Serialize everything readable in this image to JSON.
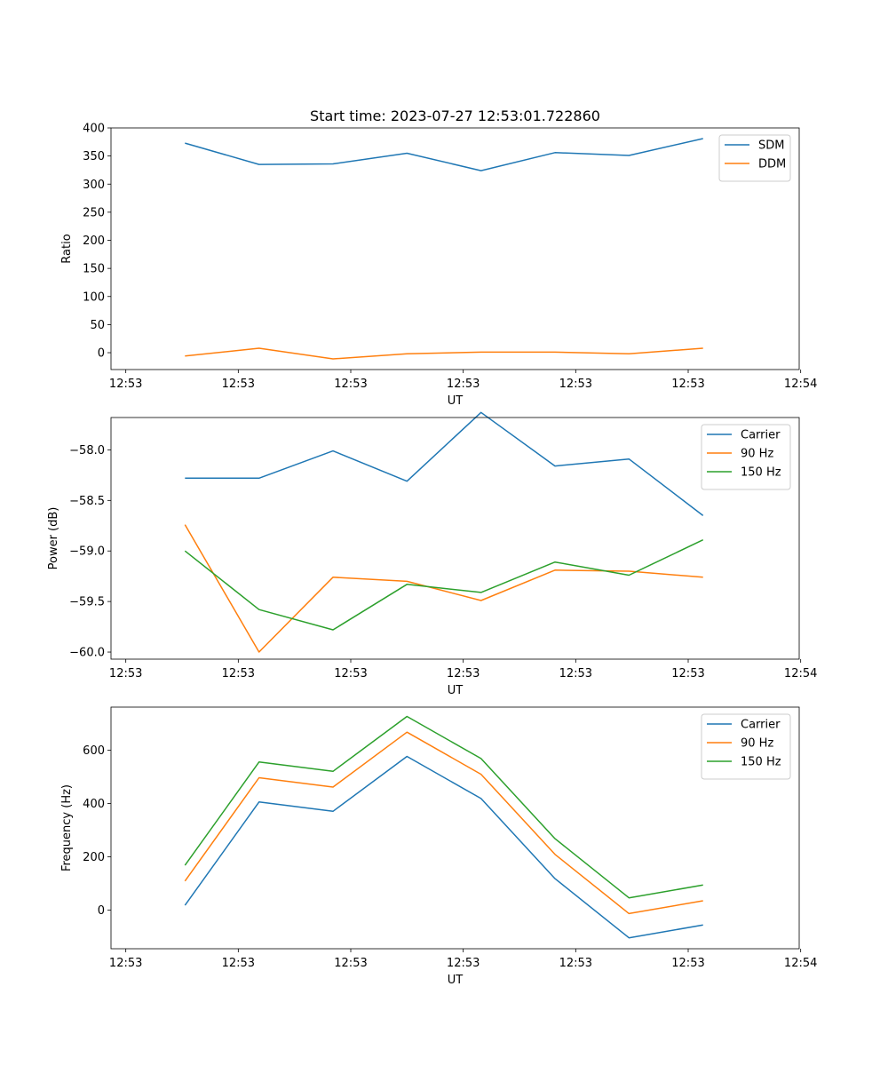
{
  "figure": {
    "title": "Start time: 2023-07-27 12:53:01.722860",
    "colors": {
      "blue": "#1f77b4",
      "orange": "#ff7f0e",
      "green": "#2ca02c"
    }
  },
  "chart_data": [
    {
      "type": "line",
      "title": "Start time: 2023-07-27 12:53:01.722860",
      "xlabel": "UT",
      "ylabel": "Ratio",
      "x": [
        1,
        2,
        3,
        4,
        5,
        6,
        7,
        8
      ],
      "xlim": [
        0,
        9.3
      ],
      "x_ticks": [
        0.2,
        1.72,
        3.24,
        4.76,
        6.28,
        7.8,
        9.32
      ],
      "x_tick_labels": [
        "12:53",
        "12:53",
        "12:53",
        "12:53",
        "12:53",
        "12:53",
        "12:54"
      ],
      "ylim": [
        -30,
        400
      ],
      "y_ticks": [
        0,
        50,
        100,
        150,
        200,
        250,
        300,
        350,
        400
      ],
      "y_tick_labels": [
        "0",
        "50",
        "100",
        "150",
        "200",
        "250",
        "300",
        "350",
        "400"
      ],
      "legend_position": "upper right",
      "series": [
        {
          "name": "SDM",
          "color": "#1f77b4",
          "values": [
            373,
            335,
            336,
            355,
            324,
            356,
            351,
            381
          ]
        },
        {
          "name": "DDM",
          "color": "#ff7f0e",
          "values": [
            -6,
            8,
            -11,
            -2,
            1,
            1,
            -2,
            8
          ]
        }
      ]
    },
    {
      "type": "line",
      "title": "",
      "xlabel": "UT",
      "ylabel": "Power (dB)",
      "x": [
        1,
        2,
        3,
        4,
        5,
        6,
        7,
        8
      ],
      "xlim": [
        0,
        9.3
      ],
      "x_ticks": [
        0.2,
        1.72,
        3.24,
        4.76,
        6.28,
        7.8,
        9.32
      ],
      "x_tick_labels": [
        "12:53",
        "12:53",
        "12:53",
        "12:53",
        "12:53",
        "12:53",
        "12:54"
      ],
      "ylim": [
        -60.07,
        -57.68
      ],
      "y_ticks": [
        -60.0,
        -59.5,
        -59.0,
        -58.5,
        -58.0
      ],
      "y_tick_labels": [
        "−60.0",
        "−59.5",
        "−59.0",
        "−58.5",
        "−58.0"
      ],
      "legend_position": "upper right",
      "series": [
        {
          "name": "Carrier",
          "color": "#1f77b4",
          "values": [
            -58.28,
            -58.28,
            -58.01,
            -58.31,
            -57.63,
            -58.16,
            -58.09,
            -58.65
          ]
        },
        {
          "name": "90 Hz",
          "color": "#ff7f0e",
          "values": [
            -58.74,
            -60.0,
            -59.26,
            -59.3,
            -59.49,
            -59.19,
            -59.2,
            -59.26
          ]
        },
        {
          "name": "150 Hz",
          "color": "#2ca02c",
          "values": [
            -59.0,
            -59.58,
            -59.78,
            -59.33,
            -59.41,
            -59.11,
            -59.24,
            -58.89
          ]
        }
      ]
    },
    {
      "type": "line",
      "title": "",
      "xlabel": "UT",
      "ylabel": "Frequency (Hz)",
      "x": [
        1,
        2,
        3,
        4,
        5,
        6,
        7,
        8
      ],
      "xlim": [
        0,
        9.3
      ],
      "x_ticks": [
        0.2,
        1.72,
        3.24,
        4.76,
        6.28,
        7.8,
        9.32
      ],
      "x_tick_labels": [
        "12:53",
        "12:53",
        "12:53",
        "12:53",
        "12:53",
        "12:53",
        "12:54"
      ],
      "ylim": [
        -145,
        762
      ],
      "y_ticks": [
        0,
        200,
        400,
        600
      ],
      "y_tick_labels": [
        "0",
        "200",
        "400",
        "600"
      ],
      "legend_position": "upper right",
      "series": [
        {
          "name": "Carrier",
          "color": "#1f77b4",
          "values": [
            18,
            406,
            371,
            577,
            419,
            118,
            -104,
            -56
          ]
        },
        {
          "name": "90 Hz",
          "color": "#ff7f0e",
          "values": [
            109,
            497,
            462,
            668,
            510,
            209,
            -13,
            35
          ]
        },
        {
          "name": "150 Hz",
          "color": "#2ca02c",
          "values": [
            168,
            556,
            521,
            727,
            569,
            268,
            46,
            94
          ]
        }
      ]
    }
  ]
}
